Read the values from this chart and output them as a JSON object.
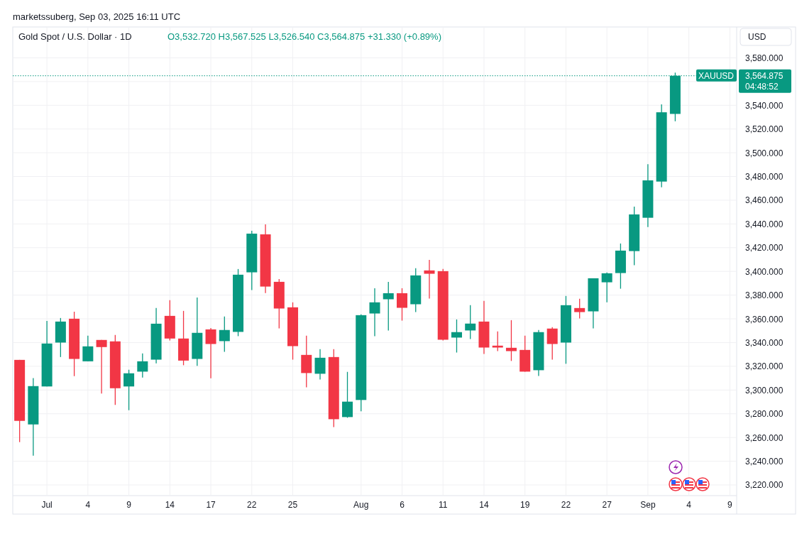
{
  "chart_data": {
    "type": "candlestick",
    "title": "Gold Spot / U.S. Dollar · 1D",
    "subtitle": "O3,532.720 H3,567.525 L3,526.540 C3,564.875 +31.330 (+0.89%)",
    "ylabel": "USD",
    "annotations": [
      "marketssuberg, Sep 03, 2025 16:11 UTC",
      "3,564.875",
      "04:48:52"
    ],
    "categories": [
      null,
      null,
      "Jul",
      null,
      null,
      "4",
      null,
      null,
      "9",
      null,
      null,
      "14",
      null,
      null,
      "17",
      null,
      null,
      "22",
      null,
      null,
      "25",
      null,
      null,
      null,
      null,
      "Aug",
      null,
      null,
      "6",
      null,
      null,
      "11",
      null,
      null,
      "14",
      null,
      null,
      "19",
      null,
      null,
      "22",
      null,
      null,
      "27",
      null,
      null,
      "Sep",
      null,
      null,
      "4",
      null,
      null,
      "9"
    ],
    "ohlc": [
      [
        3325.4,
        3325.4,
        3256.1,
        3274.0
      ],
      [
        3271.0,
        3310.0,
        3244.7,
        3303.3
      ],
      [
        3303.0,
        3358.3,
        3303.0,
        3339.2
      ],
      [
        3340.0,
        3360.7,
        3327.8,
        3357.7
      ],
      [
        3360.1,
        3366.0,
        3311.7,
        3326.2
      ],
      [
        3324.2,
        3345.8,
        3324.2,
        3336.8
      ],
      [
        3342.2,
        3342.2,
        3297.0,
        3336.2
      ],
      [
        3341.0,
        3346.4,
        3287.4,
        3301.5
      ],
      [
        3303.0,
        3317.1,
        3283.0,
        3314.1
      ],
      [
        3315.5,
        3330.8,
        3310.5,
        3324.2
      ],
      [
        3325.6,
        3369.1,
        3322.5,
        3355.9
      ],
      [
        3362.5,
        3375.7,
        3341.8,
        3343.4
      ],
      [
        3343.4,
        3366.7,
        3320.9,
        3324.8
      ],
      [
        3326.2,
        3378.0,
        3320.3,
        3348.2
      ],
      [
        3351.1,
        3352.3,
        3309.9,
        3338.8
      ],
      [
        3341.2,
        3361.9,
        3332.2,
        3350.6
      ],
      [
        3349.0,
        3402.0,
        3345.4,
        3397.2
      ],
      [
        3399.2,
        3434.2,
        3384.2,
        3431.8
      ],
      [
        3431.2,
        3439.6,
        3381.7,
        3387.2
      ],
      [
        3391.2,
        3393.6,
        3352.0,
        3368.7
      ],
      [
        3369.7,
        3373.9,
        3325.6,
        3337.0
      ],
      [
        3329.6,
        3345.8,
        3302.3,
        3314.3
      ],
      [
        3313.7,
        3334.4,
        3308.9,
        3327.2
      ],
      [
        3327.8,
        3334.4,
        3268.8,
        3275.4
      ],
      [
        3277.2,
        3315.3,
        3276.6,
        3290.2
      ],
      [
        3291.6,
        3363.7,
        3282.0,
        3363.1
      ],
      [
        3364.5,
        3385.8,
        3345.4,
        3373.9
      ],
      [
        3376.5,
        3391.2,
        3350.2,
        3381.6
      ],
      [
        3381.6,
        3385.8,
        3358.5,
        3369.3
      ],
      [
        3372.3,
        3402.6,
        3365.7,
        3396.6
      ],
      [
        3400.8,
        3409.7,
        3377.1,
        3398.0
      ],
      [
        3400.2,
        3402.0,
        3341.8,
        3342.4
      ],
      [
        3344.2,
        3359.5,
        3331.6,
        3348.8
      ],
      [
        3350.2,
        3371.5,
        3343.0,
        3356.0
      ],
      [
        3357.7,
        3375.1,
        3330.4,
        3335.8
      ],
      [
        3337.4,
        3349.4,
        3332.8,
        3335.8
      ],
      [
        3335.6,
        3358.9,
        3324.5,
        3332.8
      ],
      [
        3333.8,
        3345.8,
        3315.5,
        3315.5
      ],
      [
        3316.7,
        3350.6,
        3311.9,
        3348.8
      ],
      [
        3351.8,
        3353.0,
        3325.6,
        3338.8
      ],
      [
        3340.0,
        3379.3,
        3322.1,
        3371.5
      ],
      [
        3369.1,
        3377.0,
        3360.3,
        3365.7
      ],
      [
        3366.3,
        3394.2,
        3351.9,
        3394.2
      ],
      [
        3390.8,
        3399.0,
        3374.0,
        3398.4
      ],
      [
        3398.6,
        3423.5,
        3385.4,
        3417.5
      ],
      [
        3417.1,
        3454.6,
        3405.2,
        3448.0
      ],
      [
        3445.2,
        3490.4,
        3437.4,
        3476.7
      ],
      [
        3475.7,
        3540.7,
        3470.9,
        3534.1
      ],
      [
        3532.72,
        3567.525,
        3526.54,
        3564.875
      ],
      null,
      null,
      null,
      null
    ],
    "colors": [
      "#f23645",
      "#089981",
      "#089981",
      "#089981",
      "#f23645",
      "#089981",
      "#f23645",
      "#f23645",
      "#089981",
      "#089981",
      "#089981",
      "#f23645",
      "#f23645",
      "#089981",
      "#f23645",
      "#089981",
      "#089981",
      "#089981",
      "#f23645",
      "#f23645",
      "#f23645",
      "#f23645",
      "#089981",
      "#f23645",
      "#089981",
      "#089981",
      "#089981",
      "#089981",
      "#f23645",
      "#089981",
      "#f23645",
      "#f23645",
      "#089981",
      "#089981",
      "#f23645",
      "#f23645",
      "#f23645",
      "#f23645",
      "#089981",
      "#f23645",
      "#089981",
      "#f23645",
      "#089981",
      "#089981",
      "#089981",
      "#089981",
      "#089981",
      "#089981",
      "#089981",
      null,
      null,
      null,
      null
    ],
    "ylim": [
      3211,
      3606
    ],
    "yticks": [
      {
        "value": 3220,
        "label": "3,220.000"
      },
      {
        "value": 3240,
        "label": "3,240.000"
      },
      {
        "value": 3260,
        "label": "3,260.000"
      },
      {
        "value": 3280,
        "label": "3,280.000"
      },
      {
        "value": 3300,
        "label": "3,300.000"
      },
      {
        "value": 3320,
        "label": "3,320.000"
      },
      {
        "value": 3340,
        "label": "3,340.000"
      },
      {
        "value": 3360,
        "label": "3,360.000"
      },
      {
        "value": 3380,
        "label": "3,380.000"
      },
      {
        "value": 3400,
        "label": "3,400.000"
      },
      {
        "value": 3420,
        "label": "3,420.000"
      },
      {
        "value": 3440,
        "label": "3,440.000"
      },
      {
        "value": 3460,
        "label": "3,460.000"
      },
      {
        "value": 3480,
        "label": "3,480.000"
      },
      {
        "value": 3500,
        "label": "3,500.000"
      },
      {
        "value": 3520,
        "label": "3,520.000"
      },
      {
        "value": 3540,
        "label": "3,540.000"
      },
      {
        "value": 3560,
        "label": null
      },
      {
        "value": 3580,
        "label": "3,580.000"
      }
    ],
    "ref_lines": [
      {
        "axis": "y",
        "value": 3564.875,
        "label": "XAUUSD",
        "color": "#089981",
        "line_style": "dotted"
      }
    ],
    "grid": true
  }
}
